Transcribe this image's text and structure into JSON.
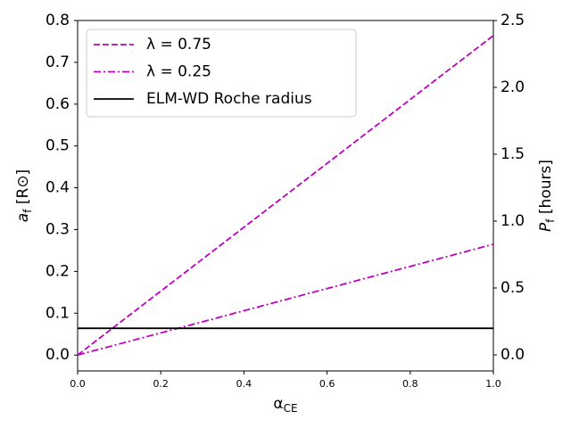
{
  "chart_data": {
    "type": "line",
    "xlabel": {
      "main": "α",
      "sub": "CE"
    },
    "ylabel": {
      "main": "a",
      "sub": "f",
      "rest": " [R⊙]"
    },
    "y2label": {
      "main": "P",
      "sub": "f",
      "rest": " [hours]"
    },
    "xlim": [
      0,
      1
    ],
    "xticks": [
      {
        "value": 0,
        "label": "0.0"
      },
      0.2,
      0.4,
      0.6,
      0.8,
      {
        "value": 1,
        "label": "1.0"
      }
    ],
    "ylim": [
      -0.038,
      0.8
    ],
    "yticks": [
      {
        "value": 0,
        "label": "0.0"
      },
      0.1,
      0.2,
      0.3,
      0.4,
      0.5,
      0.6,
      0.7,
      0.8
    ],
    "y2lim": [
      -0.12,
      2.5
    ],
    "y2ticks": [
      {
        "value": 0,
        "label": "0.0"
      },
      0.5,
      {
        "value": 1,
        "label": "1.0"
      },
      1.5,
      {
        "value": 2,
        "label": "2.0"
      },
      2.5
    ],
    "grid": false,
    "legend": "upper left",
    "series": [
      {
        "name": "λ = 0.75",
        "color": "#bf00bf",
        "style": "dashed",
        "x": [
          0,
          1
        ],
        "values": [
          0,
          0.764
        ]
      },
      {
        "name": "λ = 0.25",
        "color": "#bf00bf",
        "style": "dashdot",
        "x": [
          0,
          1
        ],
        "values": [
          0,
          0.265
        ]
      },
      {
        "name": "ELM-WD Roche radius",
        "color": "#000000",
        "style": "solid",
        "x": [
          0,
          1
        ],
        "values": [
          0.064,
          0.064
        ]
      }
    ]
  }
}
